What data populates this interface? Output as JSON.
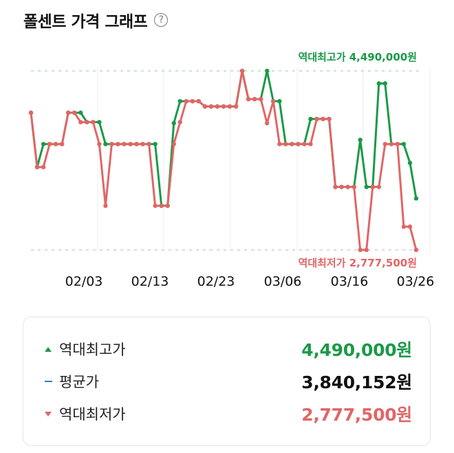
{
  "header": {
    "title": "폴센트 가격 그래프",
    "help_icon": "question-circle-icon"
  },
  "colors": {
    "max": "#1a9a47",
    "min": "#e06666",
    "avg": "#2a7fd4"
  },
  "annotations": {
    "max_label": "역대최고가 4,490,000원",
    "min_label": "역대최저가 2,777,500원"
  },
  "summary": {
    "rows": [
      {
        "marker": "triangle-up-icon",
        "label": "역대최고가",
        "value": "4,490,000원"
      },
      {
        "marker": "dash-icon",
        "label": "평균가",
        "value": "3,840,152원"
      },
      {
        "marker": "triangle-down-icon",
        "label": "역대최저가",
        "value": "2,777,500원"
      }
    ]
  },
  "chart_data": {
    "type": "line",
    "title": "폴센트 가격 그래프",
    "xlabel": "",
    "ylabel": "",
    "x_tick_labels": [
      "02/03",
      "02/13",
      "02/23",
      "03/06",
      "03/16",
      "03/26"
    ],
    "ylim": [
      2777500,
      4490000
    ],
    "grid": "vertical lines at x ticks; dotted reference lines at max and min",
    "legend": "none (summary box below chart)",
    "reference_lines": [
      {
        "name": "역대최고가",
        "value": 4490000,
        "label": "역대최고가 4,490,000원"
      },
      {
        "name": "역대최저가",
        "value": 2777500,
        "label": "역대최저가 2,777,500원"
      }
    ],
    "average": 3840152,
    "series": [
      {
        "name": "최고가",
        "color": "#1a9a47",
        "values": [
          4090000,
          3570000,
          3790000,
          3790000,
          3790000,
          3790000,
          4090000,
          4090000,
          4090000,
          4000000,
          4000000,
          4000000,
          3790000,
          3790000,
          3790000,
          3790000,
          3790000,
          3790000,
          3790000,
          3790000,
          3790000,
          3200000,
          3200000,
          3990000,
          4200000,
          4200000,
          4200000,
          4200000,
          4150000,
          4150000,
          4150000,
          4150000,
          4150000,
          4150000,
          4490000,
          4220000,
          4220000,
          4220000,
          4490000,
          4200000,
          4200000,
          3790000,
          3790000,
          3790000,
          3790000,
          4030000,
          4030000,
          4030000,
          4030000,
          3380000,
          3380000,
          3380000,
          3380000,
          3830000,
          3380000,
          3380000,
          4370000,
          4370000,
          3790000,
          3790000,
          3790000,
          3610000,
          3270000
        ]
      },
      {
        "name": "최저가",
        "color": "#e06666",
        "values": [
          4090000,
          3570000,
          3570000,
          3790000,
          3790000,
          3790000,
          4090000,
          4090000,
          4000000,
          4000000,
          4000000,
          3790000,
          3200000,
          3790000,
          3790000,
          3790000,
          3790000,
          3790000,
          3790000,
          3790000,
          3200000,
          3200000,
          3200000,
          3790000,
          4000000,
          4200000,
          4200000,
          4200000,
          4150000,
          4150000,
          4150000,
          4150000,
          4150000,
          4150000,
          4490000,
          4220000,
          4220000,
          4220000,
          3990000,
          4200000,
          3790000,
          3790000,
          3790000,
          3790000,
          3790000,
          3790000,
          4030000,
          4030000,
          4030000,
          3380000,
          3380000,
          3380000,
          3380000,
          2777500,
          2777500,
          3380000,
          3380000,
          3790000,
          3790000,
          3790000,
          3000000,
          3000000,
          2777500
        ]
      }
    ]
  }
}
